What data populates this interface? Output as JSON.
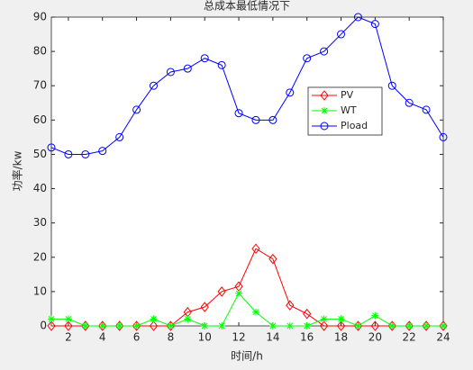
{
  "chart_data": {
    "type": "line",
    "title": "总成本最低情况下",
    "xlabel": "时间/h",
    "ylabel": "功率/kw",
    "x": [
      1,
      2,
      3,
      4,
      5,
      6,
      7,
      8,
      9,
      10,
      11,
      12,
      13,
      14,
      15,
      16,
      17,
      18,
      19,
      20,
      21,
      22,
      23,
      24
    ],
    "series": [
      {
        "name": "PV",
        "color": "#ff0000",
        "marker": "diamond",
        "values": [
          0,
          0,
          0,
          0,
          0,
          0,
          0,
          0,
          4,
          5.5,
          10,
          11.5,
          22.5,
          19.5,
          6,
          3.5,
          0,
          0,
          0,
          0,
          0,
          0,
          0,
          0
        ]
      },
      {
        "name": "WT",
        "color": "#00ff00",
        "marker": "star",
        "values": [
          2,
          2,
          0,
          0,
          0,
          0,
          2,
          0,
          2,
          0,
          0,
          9.5,
          4,
          0,
          0,
          0,
          2,
          2,
          0,
          3,
          0,
          0,
          0,
          0
        ]
      },
      {
        "name": "Pload",
        "color": "#0000ff",
        "marker": "circle",
        "values": [
          52,
          50,
          50,
          51,
          55,
          63,
          70,
          74,
          75,
          78,
          76,
          62,
          60,
          60,
          68,
          78,
          80,
          85,
          90,
          88,
          70,
          65,
          63,
          55
        ]
      }
    ],
    "xlim": [
      1,
      24
    ],
    "xticks": [
      2,
      4,
      6,
      8,
      10,
      12,
      14,
      16,
      18,
      20,
      22,
      24
    ],
    "ylim": [
      0,
      90
    ],
    "yticks": [
      0,
      10,
      20,
      30,
      40,
      50,
      60,
      70,
      80,
      90
    ],
    "legend": "east"
  }
}
